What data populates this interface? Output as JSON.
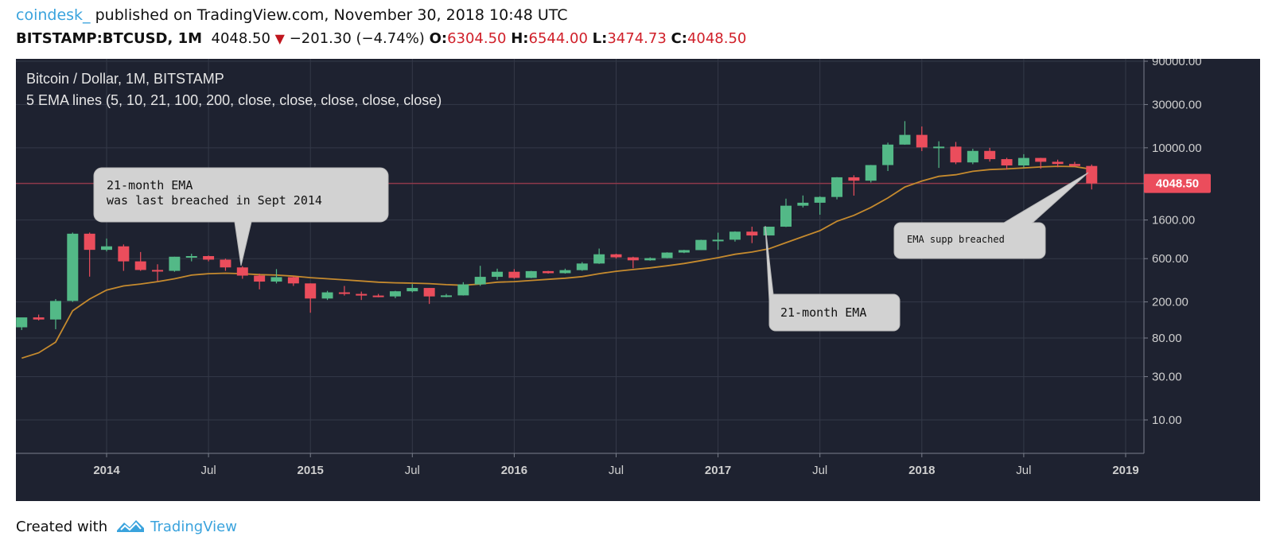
{
  "header": {
    "author": "coindesk_",
    "published": " published on TradingView.com, November 30, 2018 10:48 UTC",
    "symbol": "BITSTAMP:BTCUSD, 1M",
    "last": "4048.50",
    "change": "−201.30 (−4.74%)",
    "o_label": "O:",
    "o": "6304.50",
    "h_label": "H:",
    "h": "6544.00",
    "l_label": "L:",
    "l": "3474.73",
    "c_label": "C:",
    "c": "4048.50"
  },
  "footer": {
    "created": "Created with",
    "brand": "TradingView"
  },
  "colors": {
    "bg": "#1e2230",
    "grid": "#343948",
    "up": "#53b987",
    "down": "#eb4d5c",
    "ema": "#c58a2e",
    "price_line": "#8e3a4a",
    "callout": "#d2d2d2",
    "axis_text": "#cfcfcf"
  },
  "chart_data": {
    "type": "candlestick",
    "title": "Bitcoin / Dollar, 1M, BITSTAMP",
    "subtitle": "5 EMA lines (5, 10, 21, 100, 200, close, close, close, close, close)",
    "scale": "log",
    "ylim": [
      5,
      100000
    ],
    "y_ticks": [
      90000,
      30000,
      10000,
      1600,
      600,
      200,
      80,
      30,
      10
    ],
    "y_tick_labels": [
      "90000.00",
      "30000.00",
      "10000.00",
      "1600.00",
      "600.00",
      "200.00",
      "80.00",
      "30.00",
      "10.00"
    ],
    "x_ticks": [
      {
        "label": "2014",
        "t": "2014-01",
        "bold": true
      },
      {
        "label": "Jul",
        "t": "2014-07",
        "bold": false
      },
      {
        "label": "2015",
        "t": "2015-01",
        "bold": true
      },
      {
        "label": "Jul",
        "t": "2015-07",
        "bold": false
      },
      {
        "label": "2016",
        "t": "2016-01",
        "bold": true
      },
      {
        "label": "Jul",
        "t": "2016-07",
        "bold": false
      },
      {
        "label": "2017",
        "t": "2017-01",
        "bold": true
      },
      {
        "label": "Jul",
        "t": "2017-07",
        "bold": false
      },
      {
        "label": "2018",
        "t": "2018-01",
        "bold": true
      },
      {
        "label": "Jul",
        "t": "2018-07",
        "bold": false
      },
      {
        "label": "2019",
        "t": "2019-01",
        "bold": true
      }
    ],
    "last_price_label": "4048.50",
    "last_price": 4048.5,
    "candles": [
      {
        "t": "2013-08",
        "o": 105,
        "h": 128,
        "l": 98,
        "c": 135
      },
      {
        "t": "2013-09",
        "o": 135,
        "h": 145,
        "l": 125,
        "c": 128
      },
      {
        "t": "2013-10",
        "o": 128,
        "h": 215,
        "l": 100,
        "c": 205
      },
      {
        "t": "2013-11",
        "o": 205,
        "h": 1163,
        "l": 200,
        "c": 1130
      },
      {
        "t": "2013-12",
        "o": 1130,
        "h": 1163,
        "l": 380,
        "c": 750
      },
      {
        "t": "2014-01",
        "o": 750,
        "h": 1000,
        "l": 720,
        "c": 820
      },
      {
        "t": "2014-02",
        "o": 820,
        "h": 860,
        "l": 440,
        "c": 560
      },
      {
        "t": "2014-03",
        "o": 560,
        "h": 710,
        "l": 440,
        "c": 450
      },
      {
        "t": "2014-04",
        "o": 450,
        "h": 520,
        "l": 340,
        "c": 440
      },
      {
        "t": "2014-05",
        "o": 440,
        "h": 630,
        "l": 430,
        "c": 630
      },
      {
        "t": "2014-06",
        "o": 630,
        "h": 680,
        "l": 560,
        "c": 640
      },
      {
        "t": "2014-07",
        "o": 640,
        "h": 650,
        "l": 560,
        "c": 585
      },
      {
        "t": "2014-08",
        "o": 585,
        "h": 600,
        "l": 440,
        "c": 480
      },
      {
        "t": "2014-09",
        "o": 480,
        "h": 495,
        "l": 360,
        "c": 390
      },
      {
        "t": "2014-10",
        "o": 390,
        "h": 410,
        "l": 275,
        "c": 335
      },
      {
        "t": "2014-11",
        "o": 335,
        "h": 460,
        "l": 320,
        "c": 375
      },
      {
        "t": "2014-12",
        "o": 375,
        "h": 385,
        "l": 300,
        "c": 320
      },
      {
        "t": "2015-01",
        "o": 320,
        "h": 320,
        "l": 152,
        "c": 218
      },
      {
        "t": "2015-02",
        "o": 218,
        "h": 265,
        "l": 210,
        "c": 255
      },
      {
        "t": "2015-03",
        "o": 255,
        "h": 300,
        "l": 235,
        "c": 245
      },
      {
        "t": "2015-04",
        "o": 245,
        "h": 260,
        "l": 210,
        "c": 235
      },
      {
        "t": "2015-05",
        "o": 235,
        "h": 245,
        "l": 225,
        "c": 230
      },
      {
        "t": "2015-06",
        "o": 230,
        "h": 265,
        "l": 220,
        "c": 262
      },
      {
        "t": "2015-07",
        "o": 262,
        "h": 315,
        "l": 255,
        "c": 285
      },
      {
        "t": "2015-08",
        "o": 285,
        "h": 285,
        "l": 190,
        "c": 230
      },
      {
        "t": "2015-09",
        "o": 230,
        "h": 245,
        "l": 225,
        "c": 236
      },
      {
        "t": "2015-10",
        "o": 236,
        "h": 330,
        "l": 235,
        "c": 312
      },
      {
        "t": "2015-11",
        "o": 312,
        "h": 500,
        "l": 300,
        "c": 378
      },
      {
        "t": "2015-12",
        "o": 378,
        "h": 465,
        "l": 350,
        "c": 430
      },
      {
        "t": "2016-01",
        "o": 430,
        "h": 460,
        "l": 360,
        "c": 368
      },
      {
        "t": "2016-02",
        "o": 368,
        "h": 440,
        "l": 365,
        "c": 437
      },
      {
        "t": "2016-03",
        "o": 437,
        "h": 440,
        "l": 410,
        "c": 415
      },
      {
        "t": "2016-04",
        "o": 415,
        "h": 465,
        "l": 410,
        "c": 448
      },
      {
        "t": "2016-05",
        "o": 448,
        "h": 550,
        "l": 440,
        "c": 530
      },
      {
        "t": "2016-06",
        "o": 530,
        "h": 775,
        "l": 525,
        "c": 670
      },
      {
        "t": "2016-07",
        "o": 670,
        "h": 680,
        "l": 600,
        "c": 620
      },
      {
        "t": "2016-08",
        "o": 620,
        "h": 630,
        "l": 470,
        "c": 575
      },
      {
        "t": "2016-09",
        "o": 575,
        "h": 620,
        "l": 570,
        "c": 608
      },
      {
        "t": "2016-10",
        "o": 608,
        "h": 705,
        "l": 605,
        "c": 700
      },
      {
        "t": "2016-11",
        "o": 700,
        "h": 750,
        "l": 690,
        "c": 745
      },
      {
        "t": "2016-12",
        "o": 745,
        "h": 970,
        "l": 745,
        "c": 965
      },
      {
        "t": "2017-01",
        "o": 965,
        "h": 1160,
        "l": 750,
        "c": 970
      },
      {
        "t": "2017-02",
        "o": 970,
        "h": 1200,
        "l": 925,
        "c": 1190
      },
      {
        "t": "2017-03",
        "o": 1190,
        "h": 1350,
        "l": 890,
        "c": 1080
      },
      {
        "t": "2017-04",
        "o": 1080,
        "h": 1350,
        "l": 1080,
        "c": 1350
      },
      {
        "t": "2017-05",
        "o": 1350,
        "h": 2750,
        "l": 1340,
        "c": 2300
      },
      {
        "t": "2017-06",
        "o": 2300,
        "h": 2980,
        "l": 2200,
        "c": 2480
      },
      {
        "t": "2017-07",
        "o": 2480,
        "h": 2920,
        "l": 1830,
        "c": 2870
      },
      {
        "t": "2017-08",
        "o": 2870,
        "h": 4750,
        "l": 2700,
        "c": 4730
      },
      {
        "t": "2017-09",
        "o": 4730,
        "h": 4980,
        "l": 2970,
        "c": 4340
      },
      {
        "t": "2017-10",
        "o": 4340,
        "h": 6470,
        "l": 4150,
        "c": 6450
      },
      {
        "t": "2017-11",
        "o": 6450,
        "h": 11400,
        "l": 5550,
        "c": 10850
      },
      {
        "t": "2017-12",
        "o": 10850,
        "h": 19666,
        "l": 10800,
        "c": 13880
      },
      {
        "t": "2018-01",
        "o": 13880,
        "h": 17180,
        "l": 9200,
        "c": 10100
      },
      {
        "t": "2018-02",
        "o": 10100,
        "h": 11800,
        "l": 6000,
        "c": 10300
      },
      {
        "t": "2018-03",
        "o": 10300,
        "h": 11600,
        "l": 6600,
        "c": 6900
      },
      {
        "t": "2018-04",
        "o": 6900,
        "h": 9750,
        "l": 6600,
        "c": 9240
      },
      {
        "t": "2018-05",
        "o": 9240,
        "h": 10000,
        "l": 7050,
        "c": 7500
      },
      {
        "t": "2018-06",
        "o": 7500,
        "h": 7760,
        "l": 5750,
        "c": 6390
      },
      {
        "t": "2018-07",
        "o": 6390,
        "h": 8500,
        "l": 6070,
        "c": 7730
      },
      {
        "t": "2018-08",
        "o": 7730,
        "h": 7760,
        "l": 5880,
        "c": 7010
      },
      {
        "t": "2018-09",
        "o": 7010,
        "h": 7400,
        "l": 6100,
        "c": 6630
      },
      {
        "t": "2018-10",
        "o": 6630,
        "h": 7000,
        "l": 6200,
        "c": 6300
      },
      {
        "t": "2018-11",
        "o": 6304.5,
        "h": 6544,
        "l": 3474.73,
        "c": 4048.5
      }
    ],
    "ema21": [
      {
        "t": "2013-08",
        "v": 48
      },
      {
        "t": "2013-09",
        "v": 55
      },
      {
        "t": "2013-10",
        "v": 72
      },
      {
        "t": "2013-11",
        "v": 160
      },
      {
        "t": "2013-12",
        "v": 215
      },
      {
        "t": "2014-01",
        "v": 270
      },
      {
        "t": "2014-02",
        "v": 300
      },
      {
        "t": "2014-03",
        "v": 315
      },
      {
        "t": "2014-04",
        "v": 335
      },
      {
        "t": "2014-05",
        "v": 360
      },
      {
        "t": "2014-06",
        "v": 395
      },
      {
        "t": "2014-07",
        "v": 410
      },
      {
        "t": "2014-08",
        "v": 415
      },
      {
        "t": "2014-09",
        "v": 410
      },
      {
        "t": "2014-10",
        "v": 400
      },
      {
        "t": "2014-11",
        "v": 395
      },
      {
        "t": "2014-12",
        "v": 385
      },
      {
        "t": "2015-01",
        "v": 370
      },
      {
        "t": "2015-02",
        "v": 360
      },
      {
        "t": "2015-03",
        "v": 350
      },
      {
        "t": "2015-04",
        "v": 340
      },
      {
        "t": "2015-05",
        "v": 330
      },
      {
        "t": "2015-06",
        "v": 325
      },
      {
        "t": "2015-07",
        "v": 322
      },
      {
        "t": "2015-08",
        "v": 318
      },
      {
        "t": "2015-09",
        "v": 310
      },
      {
        "t": "2015-10",
        "v": 305
      },
      {
        "t": "2015-11",
        "v": 315
      },
      {
        "t": "2015-12",
        "v": 330
      },
      {
        "t": "2016-01",
        "v": 335
      },
      {
        "t": "2016-02",
        "v": 345
      },
      {
        "t": "2016-03",
        "v": 355
      },
      {
        "t": "2016-04",
        "v": 365
      },
      {
        "t": "2016-05",
        "v": 380
      },
      {
        "t": "2016-06",
        "v": 410
      },
      {
        "t": "2016-07",
        "v": 435
      },
      {
        "t": "2016-08",
        "v": 455
      },
      {
        "t": "2016-09",
        "v": 475
      },
      {
        "t": "2016-10",
        "v": 500
      },
      {
        "t": "2016-11",
        "v": 530
      },
      {
        "t": "2016-12",
        "v": 570
      },
      {
        "t": "2017-01",
        "v": 615
      },
      {
        "t": "2017-02",
        "v": 670
      },
      {
        "t": "2017-03",
        "v": 710
      },
      {
        "t": "2017-04",
        "v": 770
      },
      {
        "t": "2017-05",
        "v": 900
      },
      {
        "t": "2017-06",
        "v": 1050
      },
      {
        "t": "2017-07",
        "v": 1220
      },
      {
        "t": "2017-08",
        "v": 1550
      },
      {
        "t": "2017-09",
        "v": 1800
      },
      {
        "t": "2017-10",
        "v": 2200
      },
      {
        "t": "2017-11",
        "v": 2800
      },
      {
        "t": "2017-12",
        "v": 3700
      },
      {
        "t": "2018-01",
        "v": 4300
      },
      {
        "t": "2018-02",
        "v": 4850
      },
      {
        "t": "2018-03",
        "v": 5050
      },
      {
        "t": "2018-04",
        "v": 5500
      },
      {
        "t": "2018-05",
        "v": 5750
      },
      {
        "t": "2018-06",
        "v": 5850
      },
      {
        "t": "2018-07",
        "v": 6000
      },
      {
        "t": "2018-08",
        "v": 6150
      },
      {
        "t": "2018-09",
        "v": 6250
      },
      {
        "t": "2018-10",
        "v": 6200
      },
      {
        "t": "2018-11",
        "v": 5800
      }
    ],
    "annotations": [
      {
        "text": "21-month EMA\nwas last breached in Sept 2014",
        "anchor": {
          "t": "2014-09",
          "v": 415
        }
      },
      {
        "text": "21-month EMA",
        "anchor": {
          "t": "2017-04",
          "v": 770
        }
      },
      {
        "text": "EMA supp breached",
        "anchor": {
          "t": "2018-11",
          "v": 4300
        }
      }
    ]
  }
}
